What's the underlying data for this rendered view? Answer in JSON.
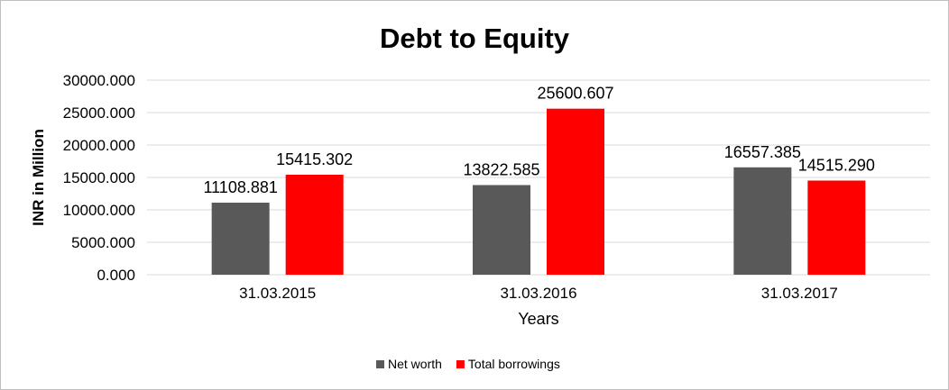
{
  "chart_data": {
    "type": "bar",
    "title": "Debt to Equity",
    "xlabel": "Years",
    "ylabel": "INR in Million",
    "ylim": [
      0,
      30000
    ],
    "yticks": [
      "0.000",
      "5000.000",
      "10000.000",
      "15000.000",
      "20000.000",
      "25000.000",
      "30000.000"
    ],
    "categories": [
      "31.03.2015",
      "31.03.2016",
      "31.03.2017"
    ],
    "series": [
      {
        "name": "Net worth",
        "color": "#595959",
        "values": [
          11108.881,
          13822.585,
          16557.385
        ],
        "labels": [
          "11108.881",
          "13822.585",
          "16557.385"
        ]
      },
      {
        "name": "Total borrowings",
        "color": "#ff0000",
        "values": [
          15415.302,
          25600.607,
          14515.29
        ],
        "labels": [
          "15415.302",
          "25600.607",
          "14515.290"
        ]
      }
    ],
    "grid": true,
    "legend_position": "bottom"
  }
}
